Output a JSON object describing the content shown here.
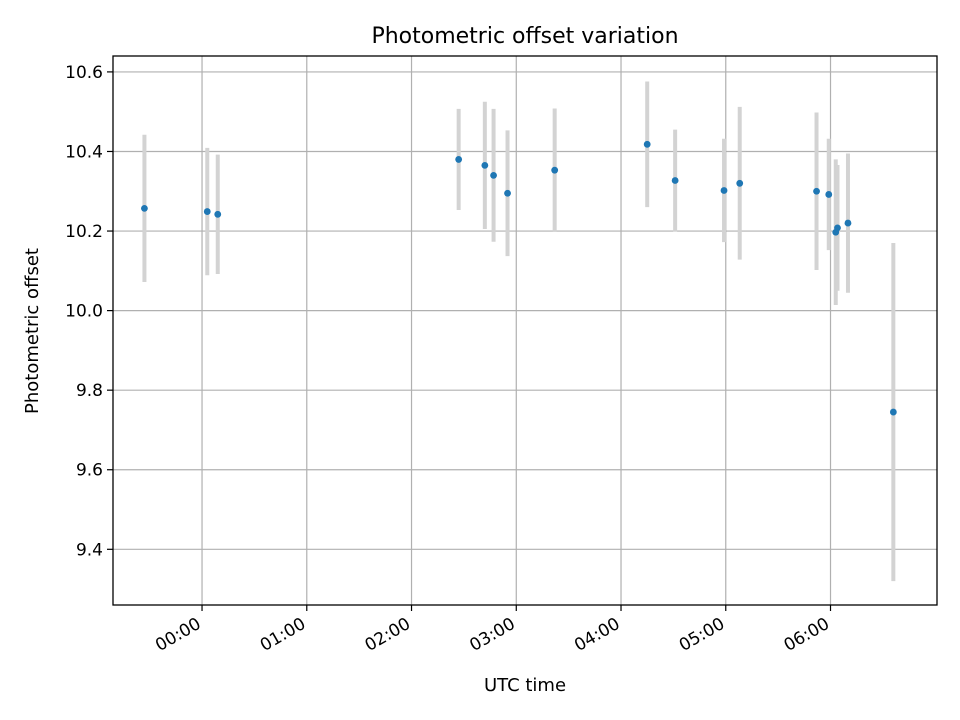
{
  "chart_data": {
    "type": "scatter",
    "title": "Photometric offset variation",
    "xlabel": "UTC time",
    "ylabel": "Photometric offset",
    "x_unit": "UTC",
    "xlim": [
      "23:09",
      "07:01"
    ],
    "ylim": [
      9.26,
      10.64
    ],
    "x_ticks": [
      "00:00",
      "01:00",
      "02:00",
      "03:00",
      "04:00",
      "05:00",
      "06:00"
    ],
    "y_ticks": [
      "9.4",
      "9.6",
      "9.8",
      "10.0",
      "10.2",
      "10.4",
      "10.6"
    ],
    "grid": true,
    "marker_color": "#1f77b4",
    "errorbar_color": "#d3d3d3",
    "points": [
      {
        "x": "23:27",
        "y": 10.257,
        "err": 0.185
      },
      {
        "x": "00:03",
        "y": 10.249,
        "err": 0.16
      },
      {
        "x": "00:09",
        "y": 10.242,
        "err": 0.15
      },
      {
        "x": "02:27",
        "y": 10.38,
        "err": 0.127
      },
      {
        "x": "02:42",
        "y": 10.365,
        "err": 0.16
      },
      {
        "x": "02:47",
        "y": 10.34,
        "err": 0.167
      },
      {
        "x": "02:55",
        "y": 10.295,
        "err": 0.158
      },
      {
        "x": "03:22",
        "y": 10.353,
        "err": 0.155
      },
      {
        "x": "04:15",
        "y": 10.418,
        "err": 0.158
      },
      {
        "x": "04:31",
        "y": 10.327,
        "err": 0.128
      },
      {
        "x": "04:59",
        "y": 10.302,
        "err": 0.13
      },
      {
        "x": "05:08",
        "y": 10.32,
        "err": 0.192
      },
      {
        "x": "05:52",
        "y": 10.3,
        "err": 0.198
      },
      {
        "x": "05:59",
        "y": 10.292,
        "err": 0.14
      },
      {
        "x": "06:03",
        "y": 10.197,
        "err": 0.183
      },
      {
        "x": "06:04",
        "y": 10.208,
        "err": 0.158
      },
      {
        "x": "06:10",
        "y": 10.22,
        "err": 0.175
      },
      {
        "x": "06:36",
        "y": 9.745,
        "err": 0.425
      }
    ]
  }
}
